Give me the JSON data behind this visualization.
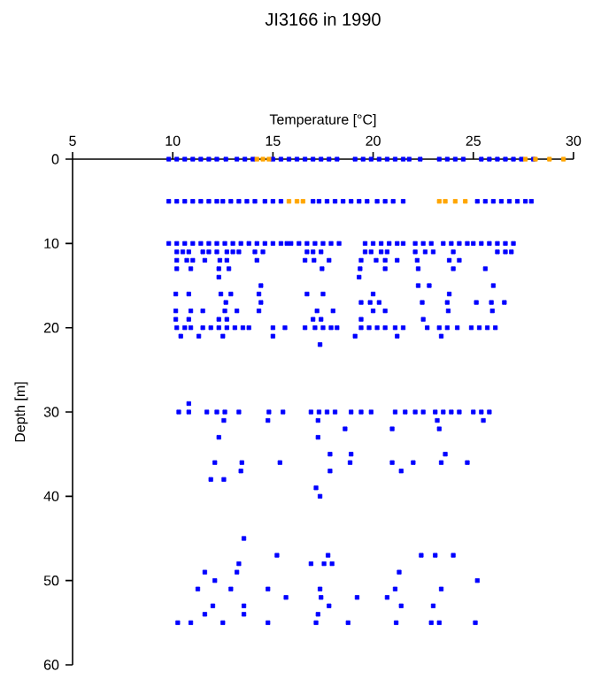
{
  "chart_data": {
    "type": "scatter",
    "title": "JI3166 in 1990",
    "xlabel": "Temperature [°C]",
    "ylabel": "Depth [m]",
    "xlim": [
      5,
      30
    ],
    "xticks": [
      5,
      10,
      15,
      20,
      25,
      30
    ],
    "ylim": [
      60,
      0
    ],
    "yticks": [
      0,
      10,
      20,
      30,
      40,
      50,
      60
    ],
    "marker": "square",
    "series": [
      {
        "color": "#0000ff",
        "x": [
          9.8,
          10.2,
          10.6,
          11.0,
          11.4,
          11.8,
          12.2,
          12.65,
          13.2,
          13.6,
          14.0,
          15.0,
          15.4,
          15.8,
          16.2,
          16.6,
          17.0,
          17.4,
          17.8,
          18.2,
          19.1,
          19.5,
          19.9,
          20.3,
          20.7,
          21.1,
          21.5,
          21.8,
          22.35,
          23.3,
          23.7,
          24.1,
          24.5,
          25.4,
          25.8,
          26.2,
          26.6,
          27.0,
          27.4,
          28.0,
          9.8,
          10.2,
          10.6,
          11.0,
          11.4,
          11.8,
          12.2,
          12.5,
          12.9,
          13.3,
          13.7,
          14.1,
          14.6,
          15.0,
          15.4,
          17.0,
          17.3,
          17.7,
          18.1,
          18.5,
          18.9,
          19.3,
          19.7,
          20.2,
          20.6,
          21.0,
          21.5,
          25.2,
          25.6,
          26.0,
          26.4,
          26.8,
          27.2,
          27.6,
          27.9,
          9.8,
          10.2,
          10.6,
          11.0,
          11.4,
          11.8,
          12.2,
          12.6,
          13.0,
          13.4,
          13.8,
          14.2,
          14.6,
          15.0,
          15.4,
          15.7,
          15.9,
          16.3,
          16.7,
          17.1,
          17.5,
          17.9,
          18.3,
          19.6,
          20.0,
          20.4,
          20.8,
          21.2,
          21.5,
          22.1,
          22.5,
          22.9,
          23.5,
          23.9,
          24.3,
          24.7,
          25.0,
          25.4,
          25.8,
          26.2,
          26.6,
          27.0,
          10.2,
          10.5,
          10.8,
          11.5,
          11.8,
          12.2,
          12.7,
          13.0,
          13.3,
          14.1,
          14.5,
          16.7,
          17.0,
          17.4,
          19.6,
          19.9,
          20.4,
          20.7,
          22.1,
          22.6,
          23.0,
          24.0,
          26.2,
          26.6,
          26.9,
          10.2,
          10.7,
          11.0,
          11.6,
          12.35,
          12.7,
          14.2,
          16.6,
          17.05,
          17.8,
          19.4,
          20.15,
          20.6,
          21.2,
          22.2,
          23.8,
          24.3,
          10.2,
          10.9,
          12.3,
          12.8,
          17.45,
          19.35,
          20.6,
          22.25,
          24.0,
          25.6,
          12.3,
          19.3,
          14.4,
          22.25,
          22.8,
          26.0,
          10.15,
          10.8,
          12.4,
          12.9,
          14.3,
          16.7,
          17.5,
          20.0,
          23.8,
          12.65,
          14.4,
          19.4,
          19.85,
          20.3,
          22.45,
          23.7,
          25.15,
          25.9,
          26.55,
          10.15,
          10.9,
          11.5,
          12.6,
          13.2,
          14.3,
          17.2,
          18.0,
          20.0,
          20.6,
          23.75,
          25.95,
          10.15,
          10.8,
          12.3,
          12.7,
          17.0,
          17.4,
          19.4,
          22.5,
          10.2,
          10.6,
          10.9,
          11.5,
          11.9,
          12.3,
          12.7,
          13.1,
          13.5,
          13.8,
          15.0,
          15.6,
          16.6,
          17.1,
          17.5,
          17.9,
          18.2,
          19.4,
          19.8,
          20.2,
          20.6,
          21.1,
          21.5,
          22.7,
          23.3,
          23.7,
          24.2,
          24.9,
          25.3,
          25.7,
          26.1,
          10.4,
          11.3,
          12.5,
          15.0,
          19.1,
          21.2,
          23.4,
          17.35,
          10.8,
          10.3,
          10.8,
          11.7,
          12.2,
          12.6,
          13.3,
          14.8,
          15.5,
          16.9,
          17.3,
          17.7,
          18.1,
          18.9,
          19.4,
          19.9,
          21.1,
          21.6,
          22.1,
          22.5,
          23.1,
          23.5,
          23.9,
          24.3,
          25.0,
          25.4,
          25.8,
          12.55,
          14.75,
          17.25,
          23.2,
          25.5,
          18.6,
          20.95,
          23.3,
          12.3,
          17.25,
          17.85,
          18.9,
          23.6,
          12.1,
          13.45,
          15.35,
          18.85,
          20.95,
          22.0,
          23.4,
          24.7,
          13.4,
          17.85,
          21.4,
          11.9,
          12.55,
          17.15,
          17.35,
          13.55,
          15.2,
          17.75,
          22.4,
          23.1,
          24.0,
          13.3,
          16.9,
          17.55,
          17.95,
          11.6,
          13.2,
          21.3,
          12.1,
          25.2,
          11.25,
          12.9,
          14.75,
          17.35,
          21.1,
          23.4,
          15.65,
          17.4,
          19.2,
          20.7,
          12.0,
          13.55,
          17.8,
          21.4,
          23.0,
          11.6,
          13.55,
          17.25,
          10.25,
          10.9,
          12.5,
          14.75,
          17.15,
          18.75,
          21.15,
          22.9,
          23.3,
          25.1
        ],
        "values": [
          0,
          0,
          0,
          0,
          0,
          0,
          0,
          0,
          0,
          0,
          0,
          0,
          0,
          0,
          0,
          0,
          0,
          0,
          0,
          0,
          0,
          0,
          0,
          0,
          0,
          0,
          0,
          0,
          0,
          0,
          0,
          0,
          0,
          0,
          0,
          0,
          0,
          0,
          0,
          0,
          5,
          5,
          5,
          5,
          5,
          5,
          5,
          5,
          5,
          5,
          5,
          5,
          5,
          5,
          5,
          5,
          5,
          5,
          5,
          5,
          5,
          5,
          5,
          5,
          5,
          5,
          5,
          5,
          5,
          5,
          5,
          5,
          5,
          5,
          5,
          10,
          10,
          10,
          10,
          10,
          10,
          10,
          10,
          10,
          10,
          10,
          10,
          10,
          10,
          10,
          10,
          10,
          10,
          10,
          10,
          10,
          10,
          10,
          10,
          10,
          10,
          10,
          10,
          10,
          10,
          10,
          10,
          10,
          10,
          10,
          10,
          10,
          10,
          10,
          10,
          10,
          10,
          11,
          11,
          11,
          11,
          11,
          11,
          11,
          11,
          11,
          11,
          11,
          11,
          11,
          11,
          11,
          11,
          11,
          11,
          11,
          11,
          11,
          11,
          11,
          11,
          11,
          12,
          12,
          12,
          12,
          12,
          12,
          12,
          12,
          12,
          12,
          12,
          12,
          12,
          12,
          12,
          12,
          12,
          13,
          13,
          13,
          13,
          13,
          13,
          13,
          13,
          13,
          13,
          14,
          14,
          15,
          15,
          15,
          15,
          16,
          16,
          16,
          16,
          16,
          16,
          16,
          16,
          16,
          17,
          17,
          17,
          17,
          17,
          17,
          17,
          17,
          17,
          17,
          18,
          18,
          18,
          18,
          18,
          18,
          18,
          18,
          18,
          18,
          18,
          18,
          19,
          19,
          19,
          19,
          19,
          19,
          19,
          19,
          20,
          20,
          20,
          20,
          20,
          20,
          20,
          20,
          20,
          20,
          20,
          20,
          20,
          20,
          20,
          20,
          20,
          20,
          20,
          20,
          20,
          20,
          20,
          20,
          20,
          20,
          20,
          20,
          20,
          20,
          20,
          21,
          21,
          21,
          21,
          21,
          21,
          21,
          22,
          29,
          30,
          30,
          30,
          30,
          30,
          30,
          30,
          30,
          30,
          30,
          30,
          30,
          30,
          30,
          30,
          30,
          30,
          30,
          30,
          30,
          30,
          30,
          30,
          30,
          30,
          30,
          31,
          31,
          31,
          31,
          31,
          32,
          32,
          32,
          33,
          33,
          35,
          35,
          35,
          36,
          36,
          36,
          36,
          36,
          36,
          36,
          36,
          37,
          37,
          37,
          38,
          38,
          39,
          40,
          45,
          47,
          47,
          47,
          47,
          47,
          48,
          48,
          48,
          48,
          49,
          49,
          49,
          50,
          50,
          51,
          51,
          51,
          51,
          51,
          51,
          52,
          52,
          52,
          52,
          53,
          53,
          53,
          53,
          53,
          54,
          54,
          54,
          55,
          55,
          55,
          55,
          55,
          55,
          55,
          55,
          55,
          55
        ]
      },
      {
        "color": "#ffa500",
        "x": [
          14.2,
          14.5,
          14.8,
          27.6,
          28.1,
          28.8,
          29.5,
          15.8,
          16.2,
          16.5,
          23.3,
          23.6,
          24.1,
          24.6
        ],
        "values": [
          0,
          0,
          0,
          0,
          0,
          0,
          0,
          5,
          5,
          5,
          5,
          5,
          5,
          5
        ]
      }
    ]
  }
}
